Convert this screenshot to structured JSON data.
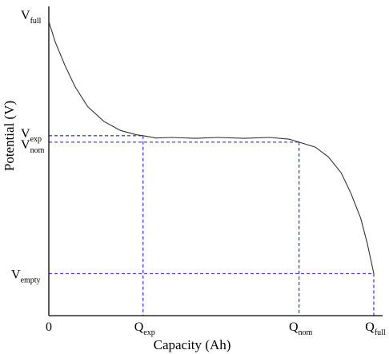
{
  "chart_data": {
    "type": "line",
    "title": "",
    "xlabel": "Capacity (Ah)",
    "ylabel": "Potential (V)",
    "grid": false,
    "legend": "none",
    "xlim": [
      0,
      1
    ],
    "ylim": [
      0,
      1
    ],
    "x_ticks": [
      {
        "main": "0",
        "sub": "",
        "value": 0
      },
      {
        "main": "Q",
        "sub": "exp",
        "value": 0.29
      },
      {
        "main": "Q",
        "sub": "nom",
        "value": 0.77
      },
      {
        "main": "Q",
        "sub": "full",
        "value": 1.0
      }
    ],
    "y_ticks": [
      {
        "main": "V",
        "sub": "full",
        "value": 1.0
      },
      {
        "main": "V",
        "sub": "exp",
        "value": 0.612
      },
      {
        "main": "V",
        "sub": "nom",
        "value": 0.59
      },
      {
        "main": "V",
        "sub": "empty",
        "value": 0.143
      }
    ],
    "series": [
      {
        "color": "#333333",
        "x": [
          0,
          0.02,
          0.05,
          0.08,
          0.12,
          0.17,
          0.22,
          0.27,
          0.29,
          0.33,
          0.38,
          0.45,
          0.52,
          0.6,
          0.68,
          0.74,
          0.77,
          0.82,
          0.86,
          0.9,
          0.93,
          0.96,
          0.98,
          1.0
        ],
        "y": [
          1.0,
          0.93,
          0.85,
          0.78,
          0.71,
          0.66,
          0.63,
          0.615,
          0.612,
          0.604,
          0.606,
          0.603,
          0.606,
          0.603,
          0.606,
          0.6,
          0.59,
          0.573,
          0.54,
          0.485,
          0.415,
          0.33,
          0.245,
          0.143
        ]
      }
    ],
    "guide_color": "#1a1aff"
  }
}
